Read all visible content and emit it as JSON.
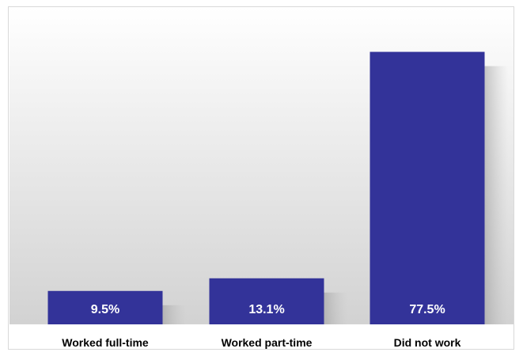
{
  "chart_data": {
    "type": "bar",
    "categories": [
      "Worked full-time",
      "Worked part-time",
      "Did not work"
    ],
    "values": [
      9.5,
      13.1,
      77.5
    ],
    "value_labels": [
      "9.5%",
      "13.1%",
      "77.5%"
    ],
    "title": "",
    "xlabel": "",
    "ylabel": "",
    "ylim": [
      0,
      90
    ],
    "grid": false,
    "legend": "none",
    "bar_color": "#333399",
    "label_color": "#ffffff"
  }
}
